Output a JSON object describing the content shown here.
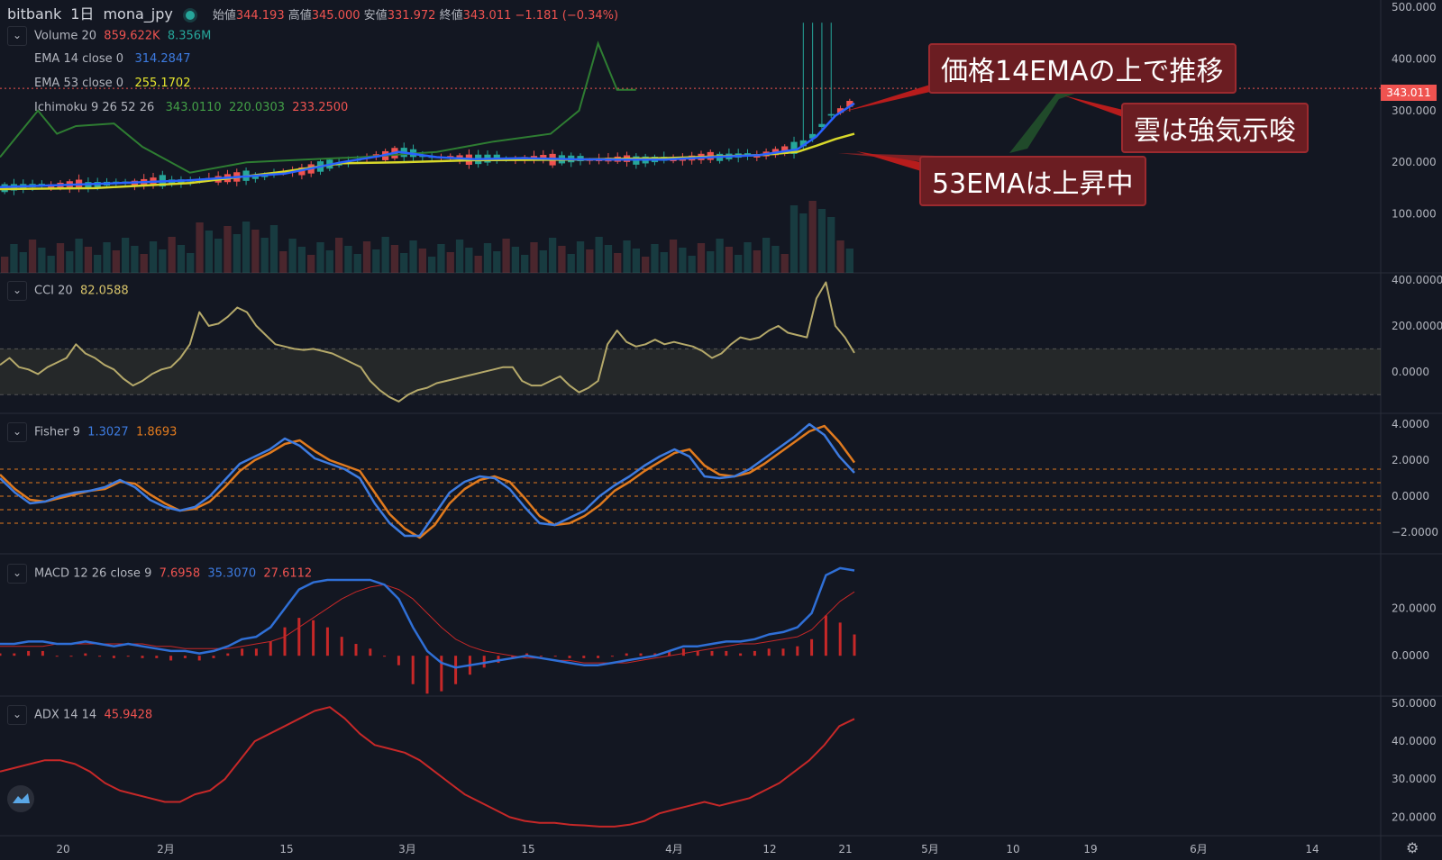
{
  "header": {
    "exchange": "bitbank",
    "interval": "1日",
    "symbol": "mona_jpy",
    "open_label": "始値",
    "open": "344.193",
    "high_label": "高値",
    "high": "345.000",
    "low_label": "安値",
    "low": "331.972",
    "close_label": "終値",
    "close": "343.011",
    "change": "−1.181 (−0.34%)"
  },
  "indicators": {
    "volume": {
      "name": "Volume 20",
      "v1": "859.622K",
      "v2": "8.356M"
    },
    "ema14": {
      "name": "EMA 14 close 0",
      "value": "314.2847"
    },
    "ema53": {
      "name": "EMA 53 close 0",
      "value": "255.1702"
    },
    "ichimoku": {
      "name": "Ichimoku 9 26 52 26",
      "v1": "343.0110",
      "v2": "220.0303",
      "v3": "233.2500"
    },
    "cci": {
      "name": "CCI 20",
      "value": "82.0588"
    },
    "fisher": {
      "name": "Fisher 9",
      "v1": "1.3027",
      "v2": "1.8693"
    },
    "macd": {
      "name": "MACD 12 26 close 9",
      "v1": "7.6958",
      "v2": "35.3070",
      "v3": "27.6112"
    },
    "adx": {
      "name": "ADX 14 14",
      "value": "45.9428"
    }
  },
  "annotations": {
    "a1": "価格14EMAの上で推移",
    "a2": "雲は強気示唆",
    "a3": "53EMAは上昇中"
  },
  "last_price_tag": "343.011",
  "colors": {
    "bg": "#131722",
    "up": "#26a69a",
    "down": "#ef5350",
    "ema14": "#2962ff",
    "ema53": "#d8d82a",
    "ichimoku_lead": "#2e7d32",
    "cci": "#b5a96a",
    "fisher1": "#3d7be0",
    "fisher2": "#e07a1e",
    "macd": "#2f6fd6",
    "signal": "#c62828",
    "adx": "#c62828"
  },
  "chart_data": [
    {
      "type": "candlestick",
      "title": "bitbank 1日 mona_jpy",
      "y_axis_ticks": [
        "500.000",
        "400.000",
        "300.000",
        "200.000",
        "100.000"
      ],
      "ylim": [
        0,
        500
      ],
      "x_tick_labels": [
        "20",
        "2月",
        "15",
        "3月",
        "15",
        "4月",
        "12",
        "21",
        "5月",
        "10",
        "19",
        "6月",
        "14"
      ],
      "ema14_points": [
        [
          0,
          152
        ],
        [
          10,
          158
        ],
        [
          20,
          165
        ],
        [
          30,
          178
        ],
        [
          36,
          200
        ],
        [
          40,
          212
        ],
        [
          42,
          220
        ],
        [
          46,
          210
        ],
        [
          50,
          206
        ],
        [
          55,
          208
        ],
        [
          60,
          206
        ],
        [
          65,
          205
        ],
        [
          70,
          205
        ],
        [
          75,
          210
        ],
        [
          80,
          214
        ],
        [
          84,
          225
        ],
        [
          86,
          250
        ],
        [
          88,
          290
        ],
        [
          90,
          314
        ]
      ],
      "ema53_points": [
        [
          0,
          148
        ],
        [
          10,
          150
        ],
        [
          20,
          160
        ],
        [
          30,
          182
        ],
        [
          36,
          198
        ],
        [
          42,
          200
        ],
        [
          50,
          204
        ],
        [
          60,
          205
        ],
        [
          70,
          208
        ],
        [
          80,
          214
        ],
        [
          84,
          220
        ],
        [
          86,
          232
        ],
        [
          88,
          245
        ],
        [
          90,
          255
        ]
      ],
      "ichimoku_lagging_points": [
        [
          0,
          210
        ],
        [
          4,
          300
        ],
        [
          6,
          255
        ],
        [
          8,
          270
        ],
        [
          12,
          275
        ],
        [
          15,
          230
        ],
        [
          20,
          180
        ],
        [
          26,
          200
        ],
        [
          32,
          205
        ],
        [
          38,
          210
        ],
        [
          46,
          220
        ],
        [
          52,
          240
        ],
        [
          58,
          255
        ],
        [
          61,
          300
        ],
        [
          63,
          430
        ],
        [
          65,
          340
        ],
        [
          67,
          340
        ]
      ],
      "last_price": 343.011
    },
    {
      "type": "line",
      "title": "CCI 20",
      "y_axis_ticks": [
        "400.0000",
        "200.0000",
        "0.0000"
      ],
      "ylim": [
        -150,
        400
      ],
      "band": [
        -100,
        100
      ],
      "values": [
        30,
        60,
        20,
        10,
        -10,
        20,
        40,
        60,
        120,
        80,
        60,
        30,
        10,
        -30,
        -60,
        -40,
        -10,
        10,
        20,
        60,
        120,
        260,
        200,
        210,
        240,
        280,
        260,
        200,
        160,
        120,
        110,
        100,
        95,
        100,
        90,
        80,
        60,
        40,
        20,
        -40,
        -80,
        -110,
        -130,
        -100,
        -80,
        -70,
        -50,
        -40,
        -30,
        -20,
        -10,
        0,
        10,
        20,
        20,
        -40,
        -60,
        -60,
        -40,
        -20,
        -60,
        -90,
        -70,
        -40,
        120,
        180,
        130,
        110,
        120,
        140,
        120,
        130,
        120,
        110,
        90,
        60,
        80,
        120,
        150,
        140,
        150,
        180,
        200,
        170,
        160,
        150,
        320,
        390,
        200,
        150,
        82
      ]
    },
    {
      "type": "line",
      "title": "Fisher 9",
      "y_axis_ticks": [
        "4.0000",
        "2.0000",
        "0.0000",
        "−2.0000"
      ],
      "ylim": [
        -2.8,
        4.2
      ],
      "series": [
        {
          "values": [
            1.0,
            0.2,
            -0.4,
            -0.3,
            0,
            0.2,
            0.3,
            0.5,
            0.9,
            0.5,
            -0.2,
            -0.6,
            -0.8,
            -0.6,
            0,
            0.9,
            1.8,
            2.2,
            2.6,
            3.2,
            2.8,
            2.1,
            1.8,
            1.5,
            1.0,
            -0.4,
            -1.5,
            -2.2,
            -2.2,
            -1.0,
            0.2,
            0.8,
            1.1,
            1.0,
            0.4,
            -0.6,
            -1.5,
            -1.6,
            -1.2,
            -0.8,
            0,
            0.6,
            1.1,
            1.7,
            2.2,
            2.6,
            2.2,
            1.1,
            1.0,
            1.1,
            1.5,
            2.1,
            2.7,
            3.3,
            4.0,
            3.4,
            2.2,
            1.3
          ]
        },
        {
          "values": [
            1.2,
            0.4,
            -0.2,
            -0.3,
            -0.1,
            0.1,
            0.3,
            0.4,
            0.8,
            0.7,
            0.1,
            -0.4,
            -0.8,
            -0.7,
            -0.3,
            0.5,
            1.4,
            2.0,
            2.4,
            2.9,
            3.1,
            2.5,
            2.0,
            1.7,
            1.4,
            0.2,
            -1.0,
            -1.8,
            -2.3,
            -1.6,
            -0.4,
            0.4,
            0.9,
            1.1,
            0.8,
            -0.1,
            -1.1,
            -1.6,
            -1.5,
            -1.1,
            -0.5,
            0.3,
            0.8,
            1.4,
            1.9,
            2.4,
            2.6,
            1.7,
            1.2,
            1.1,
            1.3,
            1.8,
            2.4,
            3.0,
            3.6,
            3.9,
            3.0,
            1.87
          ]
        }
      ],
      "levels": [
        1.5,
        0.75,
        0,
        -0.75,
        -1.5
      ]
    },
    {
      "type": "bar_line",
      "title": "MACD 12 26 close 9",
      "y_axis_ticks": [
        "20.0000",
        "0.0000"
      ],
      "ylim": [
        -14,
        40
      ],
      "macd": [
        5,
        5,
        6,
        6,
        5,
        5,
        6,
        5,
        4,
        5,
        4,
        3,
        2,
        2,
        1,
        2,
        4,
        7,
        8,
        12,
        20,
        28,
        31,
        32,
        32,
        32,
        32,
        30,
        24,
        12,
        2,
        -3,
        -5,
        -4,
        -3,
        -2,
        -1,
        0,
        -1,
        -2,
        -3,
        -4,
        -4,
        -3,
        -2,
        -1,
        0,
        2,
        4,
        4,
        5,
        6,
        6,
        7,
        9,
        10,
        12,
        18,
        34,
        37,
        36
      ],
      "signal": [
        4,
        4,
        4,
        4,
        5,
        5,
        5,
        5,
        5,
        5,
        5,
        4,
        4,
        3,
        3,
        3,
        3,
        4,
        5,
        6,
        8,
        12,
        16,
        20,
        24,
        27,
        29,
        30,
        28,
        24,
        18,
        12,
        7,
        4,
        2,
        1,
        0,
        -1,
        -1,
        -2,
        -2,
        -3,
        -3,
        -3,
        -3,
        -2,
        -1,
        0,
        1,
        2,
        3,
        4,
        5,
        5,
        6,
        7,
        8,
        11,
        17,
        23,
        27
      ],
      "histogram": [
        1,
        1,
        2,
        2,
        0,
        0,
        1,
        0,
        -1,
        0,
        -1,
        -1,
        -2,
        -1,
        -2,
        -1,
        1,
        3,
        3,
        6,
        12,
        16,
        15,
        12,
        8,
        5,
        3,
        0,
        -4,
        -12,
        -16,
        -15,
        -12,
        -8,
        -5,
        -3,
        -1,
        1,
        0,
        0,
        -1,
        -1,
        -1,
        0,
        1,
        1,
        1,
        2,
        3,
        2,
        2,
        2,
        1,
        2,
        3,
        3,
        4,
        7,
        17,
        14,
        9
      ]
    },
    {
      "type": "line",
      "title": "ADX 14 14",
      "y_axis_ticks": [
        "50.0000",
        "40.0000",
        "30.0000",
        "20.0000"
      ],
      "ylim": [
        17,
        50
      ],
      "values": [
        32,
        33,
        34,
        35,
        35,
        34,
        32,
        29,
        27,
        26,
        25,
        24,
        24,
        26,
        27,
        30,
        35,
        40,
        42,
        44,
        46,
        48,
        49,
        46,
        42,
        39,
        38,
        37,
        35,
        32,
        29,
        26,
        24,
        22,
        20,
        19,
        18.5,
        18.5,
        18,
        17.8,
        17.5,
        17.5,
        18,
        19,
        21,
        22,
        23,
        24,
        23,
        24,
        25,
        27,
        29,
        32,
        35,
        39,
        44,
        45.9
      ]
    }
  ]
}
